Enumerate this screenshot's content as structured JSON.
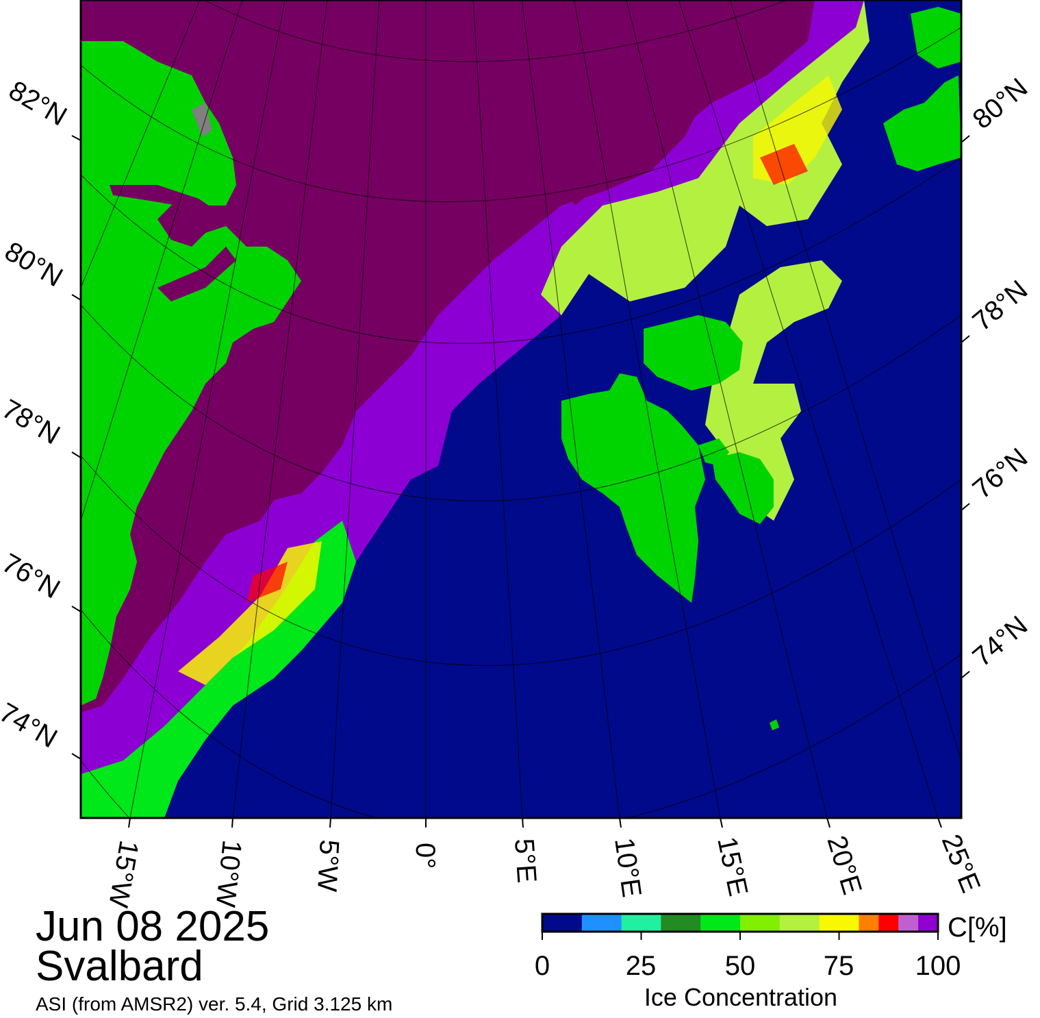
{
  "title": {
    "date": "Jun 08 2025",
    "region": "Svalbard",
    "credit": "ASI (from AMSR2) ver. 5.4,  Grid 3.125 km"
  },
  "colors": {
    "open_water": "#000a8a",
    "multiyear_ice": "#760062",
    "high_ice_purple": "#8c00d4",
    "land": "#00d400",
    "land_ice": "#808080",
    "frame": "#000000"
  },
  "map_labels": {
    "left_lat": [
      "82°N",
      "80°N",
      "78°N",
      "76°N",
      "74°N"
    ],
    "right_lat": [
      "80°N",
      "78°N",
      "76°N",
      "74°N"
    ],
    "bottom_lon": [
      "15°W",
      "10°W",
      "5°W",
      "0°",
      "5°E",
      "10°E",
      "15°E",
      "20°E",
      "25°E"
    ]
  },
  "colorbar": {
    "title": "Ice Concentration",
    "unit": "C[%]",
    "range": [
      0,
      100
    ],
    "tick_values": [
      0,
      25,
      50,
      75,
      100
    ],
    "ticks": [
      "0",
      "25",
      "50",
      "75",
      "100"
    ],
    "bins": [
      {
        "from": 0,
        "to": 10,
        "color": "#000a8a"
      },
      {
        "from": 10,
        "to": 20,
        "color": "#1e90ff"
      },
      {
        "from": 20,
        "to": 30,
        "color": "#20f0a0"
      },
      {
        "from": 30,
        "to": 40,
        "color": "#228b22"
      },
      {
        "from": 40,
        "to": 50,
        "color": "#00e81a"
      },
      {
        "from": 50,
        "to": 60,
        "color": "#80f000"
      },
      {
        "from": 60,
        "to": 70,
        "color": "#b4f040"
      },
      {
        "from": 70,
        "to": 80,
        "color": "#f8f800"
      },
      {
        "from": 80,
        "to": 85,
        "color": "#ff8000"
      },
      {
        "from": 85,
        "to": 90,
        "color": "#ff0000"
      },
      {
        "from": 90,
        "to": 95,
        "color": "#c060d0"
      },
      {
        "from": 95,
        "to": 100,
        "color": "#9000d0"
      }
    ]
  }
}
